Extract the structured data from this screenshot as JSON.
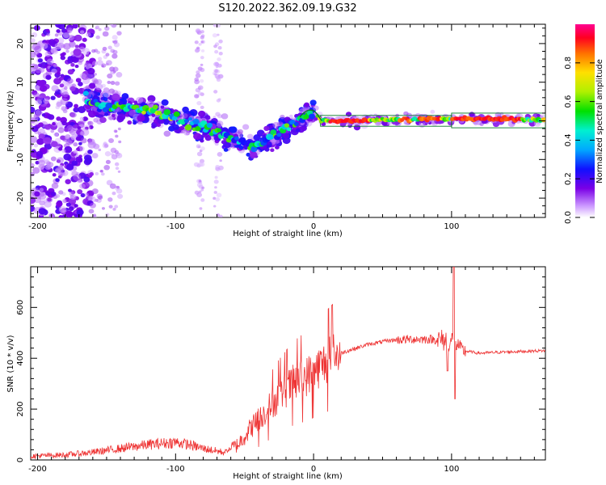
{
  "title": "S120.2022.362.09.19.G32",
  "chart_data": [
    {
      "type": "heatmap",
      "xlabel": "Height of straight line (km)",
      "ylabel": "Frequency (Hz)",
      "xlim": [
        -205,
        168
      ],
      "ylim": [
        -25,
        25
      ],
      "x_ticks": [
        "-200",
        "-100",
        "0",
        "100"
      ],
      "y_ticks": [
        "-20",
        "-10",
        "0",
        "10",
        "20"
      ],
      "colorbar": {
        "label": "Normalized spectral amplitude",
        "range": [
          0,
          1
        ],
        "ticks": [
          "0.0",
          "0.2",
          "0.4",
          "0.6",
          "0.8"
        ]
      },
      "ridge": {
        "x": [
          -165,
          -155,
          -145,
          -130,
          -115,
          -100,
          -90,
          -80,
          -70,
          -60,
          -50,
          -42,
          -35,
          -25,
          -15,
          -5,
          0,
          5,
          20,
          50,
          90,
          100,
          130,
          168
        ],
        "y": [
          6,
          4,
          4,
          3,
          2.5,
          0.5,
          -0.5,
          -1.5,
          -3,
          -4,
          -6,
          -7,
          -5,
          -3,
          -1,
          1,
          2.5,
          0,
          0,
          0.3,
          0.5,
          0.5,
          0.5,
          0.3
        ]
      }
    },
    {
      "type": "line",
      "xlabel": "Height of straight line (km)",
      "ylabel": "SNR (10 * v/v)",
      "xlim": [
        -205,
        168
      ],
      "ylim": [
        0,
        760
      ],
      "x_ticks": [
        "-200",
        "-100",
        "0",
        "100"
      ],
      "y_ticks": [
        "0",
        "200",
        "400",
        "600"
      ],
      "color": "#ee3333",
      "envelope": {
        "x": [
          -205,
          -180,
          -160,
          -140,
          -120,
          -100,
          -90,
          -80,
          -65,
          -55,
          -45,
          -35,
          -25,
          -15,
          -5,
          5,
          15,
          25,
          40,
          55,
          70,
          85,
          95,
          102,
          108,
          120,
          140,
          168
        ],
        "y": [
          15,
          20,
          30,
          45,
          60,
          70,
          60,
          45,
          30,
          60,
          130,
          190,
          250,
          300,
          330,
          370,
          410,
          430,
          455,
          470,
          475,
          475,
          470,
          470,
          430,
          420,
          425,
          430
        ]
      }
    }
  ]
}
